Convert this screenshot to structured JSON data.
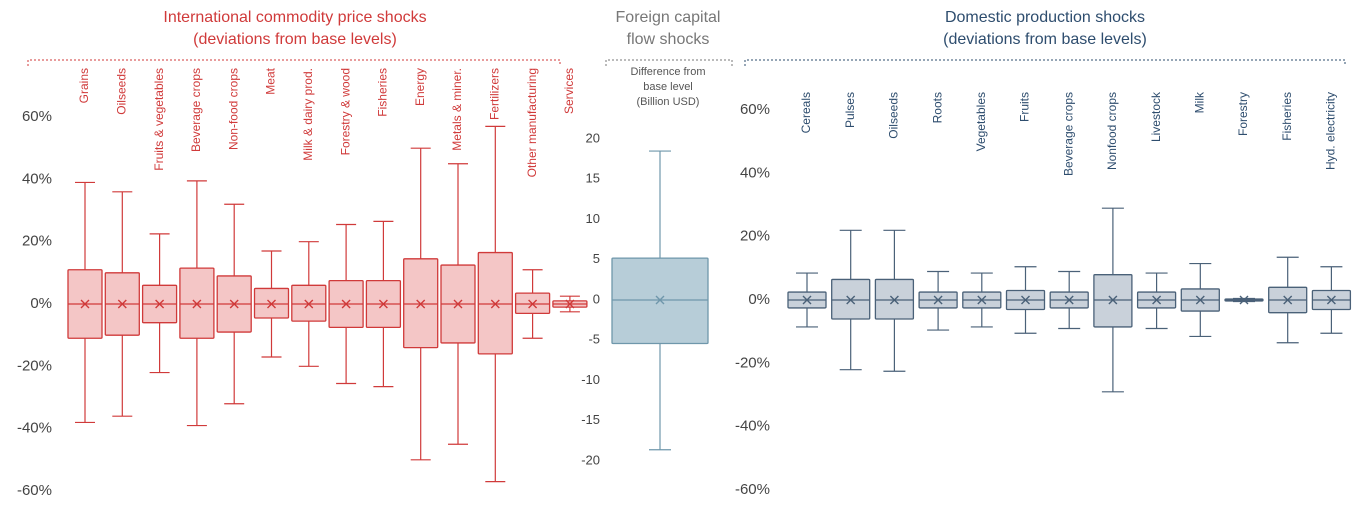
{
  "chart_data": [
    {
      "type": "box",
      "title": "International commodity price shocks",
      "subtitle": "(deviations from base levels)",
      "color": "#d03a3a",
      "fill": "#f4c6c6",
      "categories": [
        "Grains",
        "Oilseeds",
        "Fruits & vegetables",
        "Beverage crops",
        "Non-food crops",
        "Meat",
        "Milk & dairy prod.",
        "Forestry & wood",
        "Fisheries",
        "Energy",
        "Metals & miner.",
        "Fertilizers",
        "Other manufacturing",
        "Services"
      ],
      "max": [
        39,
        36,
        22.5,
        39.5,
        32,
        17,
        20,
        25.5,
        26.5,
        50,
        45,
        57,
        11,
        2.5
      ],
      "q3": [
        11,
        10,
        6,
        11.5,
        9,
        5,
        6,
        7.5,
        7.5,
        14.5,
        12.5,
        16.5,
        3.5,
        1
      ],
      "median": [
        0,
        0,
        0,
        0,
        0,
        0,
        0,
        0,
        0,
        0,
        0,
        0,
        0,
        0
      ],
      "mean": [
        0,
        0,
        0,
        0,
        0,
        0,
        0,
        0,
        0,
        0,
        0,
        0,
        0,
        0
      ],
      "q1": [
        -11,
        -10,
        -6,
        -11,
        -9,
        -4.5,
        -5.5,
        -7.5,
        -7.5,
        -14,
        -12.5,
        -16,
        -3,
        -1
      ],
      "min": [
        -38,
        -36,
        -22,
        -39,
        -32,
        -17,
        -20,
        -25.5,
        -26.5,
        -50,
        -45,
        -57,
        -11,
        -2.5
      ],
      "ylim": [
        -60,
        60
      ],
      "yticks": [
        {
          "value": -60,
          "label": "-60%"
        },
        {
          "value": -40,
          "label": "-40%"
        },
        {
          "value": -20,
          "label": "-20%"
        },
        {
          "value": 0,
          "label": "0%"
        },
        {
          "value": 20,
          "label": "20%"
        },
        {
          "value": 40,
          "label": "40%"
        },
        {
          "value": 60,
          "label": "60%"
        }
      ]
    },
    {
      "type": "box",
      "title": [
        "Foreign capital",
        "flow shocks"
      ],
      "ylabel": [
        "Difference from",
        "base level",
        "(Billion USD)"
      ],
      "color": "#6f97ab",
      "fill": "#b7cdd8",
      "categories": [
        null
      ],
      "max": [
        18.5
      ],
      "q3": [
        5.2
      ],
      "median": [
        0
      ],
      "mean": [
        0
      ],
      "q1": [
        -5.4
      ],
      "min": [
        -18.6
      ],
      "ylim": [
        -20,
        20
      ],
      "yticks": [
        -20,
        -15,
        -10,
        -5,
        0,
        5,
        10,
        15,
        20
      ]
    },
    {
      "type": "box",
      "title": "Domestic production shocks",
      "subtitle": "(deviations from base levels)",
      "color": "#4a6178",
      "fill": "#c9d1da",
      "categories": [
        "Cereals",
        "Pulses",
        "Oilseeds",
        "Roots",
        "Vegetables",
        "Fruits",
        "Beverage crops",
        "Nonfood crops",
        "Livestock",
        "Milk",
        "Forestry",
        "Fisheries",
        "Hyd. electricity"
      ],
      "max": [
        8.5,
        22,
        22,
        9,
        8.5,
        10.5,
        9,
        29,
        8.5,
        11.5,
        0.5,
        13.5,
        10.5
      ],
      "q3": [
        2.5,
        6.5,
        6.5,
        2.5,
        2.5,
        3,
        2.5,
        8,
        2.5,
        3.5,
        0.3,
        4,
        3
      ],
      "median": [
        0,
        0,
        0,
        0,
        0,
        0,
        0,
        0,
        0,
        0,
        0,
        0,
        0
      ],
      "mean": [
        0,
        0,
        0,
        0,
        0,
        0,
        0,
        0,
        0,
        0,
        0,
        0,
        0
      ],
      "q1": [
        -2.5,
        -6,
        -6,
        -2.5,
        -2.5,
        -3,
        -2.5,
        -8.5,
        -2.5,
        -3.5,
        -0.3,
        -4,
        -3
      ],
      "min": [
        -8.5,
        -22,
        -22.5,
        -9.5,
        -8.5,
        -10.5,
        -9,
        -29,
        -9,
        -11.5,
        -0.5,
        -13.5,
        -10.5
      ],
      "ylim": [
        -60,
        60
      ],
      "yticks": [
        {
          "value": -60,
          "label": "-60%"
        },
        {
          "value": -40,
          "label": "-40%"
        },
        {
          "value": -20,
          "label": "-20%"
        },
        {
          "value": 0,
          "label": "0%"
        },
        {
          "value": 20,
          "label": "20%"
        },
        {
          "value": 40,
          "label": "40%"
        },
        {
          "value": 60,
          "label": "60%"
        }
      ]
    }
  ]
}
